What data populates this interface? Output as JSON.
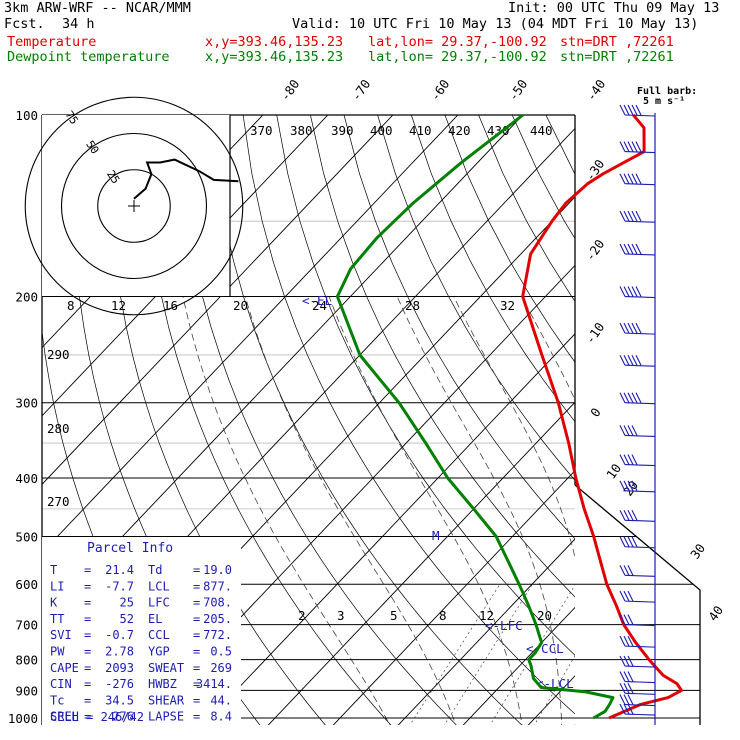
{
  "header": {
    "model": "3km ARW-WRF -- NCAR/MMM",
    "init": "Init: 00 UTC Thu 09 May 13",
    "fcst_label": "Fcst.",
    "fcst_value": "34 h",
    "valid": "Valid: 10 UTC Fri 10 May 13 (04 MDT Fri 10 May 13)",
    "temp_label": "Temperature",
    "dew_label": "Dewpoint temperature",
    "xy": "x,y=393.46,135.23",
    "latlon": "lat,lon= 29.37,-100.92",
    "stn": "stn=DRT ,72261"
  },
  "barb_legend": {
    "line1": "Full barb:",
    "line2": "5 m s⁻¹"
  },
  "hodograph": {
    "units": "kts",
    "ring_labels": [
      "25",
      "50",
      "75"
    ]
  },
  "parcel_info": {
    "title": "Parcel Info",
    "rows": [
      [
        "T",
        "21.4",
        "Td",
        "19.0"
      ],
      [
        "LI",
        "-7.7",
        "LCL",
        "877."
      ],
      [
        "K",
        "25",
        "LFC",
        "708."
      ],
      [
        "TT",
        "52",
        "EL",
        "205."
      ],
      [
        "SVI",
        "-0.7",
        "CCL",
        "772."
      ],
      [
        "PW",
        "2.78",
        "YGP",
        "0.5"
      ],
      [
        "CAPE",
        "2093",
        "SWEAT",
        "269"
      ],
      [
        "CIN",
        "-276",
        "HWBZ",
        "3414."
      ],
      [
        "Tc",
        "34.5",
        "SHEAR",
        "44."
      ],
      [
        "SREH",
        "276",
        "LAPSE",
        "8.4"
      ]
    ],
    "cell": "CELL = 246/42"
  },
  "chart_data": {
    "type": "line",
    "title": "",
    "y_axis": "pressure",
    "y_scale": "log",
    "ylim": [
      1000,
      100
    ],
    "pressure_ticks": [
      "100",
      "200",
      "300",
      "400",
      "500",
      "600",
      "700",
      "800",
      "900",
      "1000"
    ],
    "isotherm_labels_top": [
      "-80",
      "-70",
      "-60",
      "-50",
      "-40"
    ],
    "isotherm_labels_right": [
      "-30",
      "-20",
      "-10",
      "0",
      "10",
      "20",
      "30",
      "40"
    ],
    "theta_labels": [
      "370",
      "380",
      "390",
      "400",
      "410",
      "420",
      "430",
      "440"
    ],
    "mixing_ratio_labels": [
      "8",
      "12",
      "16",
      "20",
      "24",
      "28",
      "32"
    ],
    "mixing_ratio_labels_low": [
      "2",
      "3",
      "5",
      "8",
      "12",
      "20"
    ],
    "left_labels": [
      "290",
      "280",
      "270"
    ],
    "level_markers": [
      {
        "label": "<-LFC",
        "p": 708
      },
      {
        "label": "<-CCL",
        "p": 772
      },
      {
        "label": "<-LCL",
        "p": 877
      },
      {
        "label": "M",
        "p": 500
      },
      {
        "label": "<-EL",
        "p": 205
      }
    ],
    "series": [
      {
        "name": "Temperature",
        "color": "#e00000",
        "points": [
          [
            1000,
            21.4
          ],
          [
            950,
            24.2
          ],
          [
            925,
            27.5
          ],
          [
            900,
            28.5
          ],
          [
            877,
            26.8
          ],
          [
            850,
            23.5
          ],
          [
            800,
            19.0
          ],
          [
            750,
            14.5
          ],
          [
            700,
            10.0
          ],
          [
            650,
            6.0
          ],
          [
            600,
            1.5
          ],
          [
            550,
            -2.8
          ],
          [
            500,
            -7.5
          ],
          [
            450,
            -13.0
          ],
          [
            400,
            -18.8
          ],
          [
            350,
            -25.0
          ],
          [
            300,
            -32.5
          ],
          [
            250,
            -42.0
          ],
          [
            200,
            -53.5
          ],
          [
            170,
            -58.5
          ],
          [
            150,
            -60.0
          ],
          [
            140,
            -60.5
          ],
          [
            130,
            -60.0
          ],
          [
            125,
            -59.0
          ],
          [
            115,
            -56.0
          ],
          [
            105,
            -59.5
          ],
          [
            100,
            -63.0
          ]
        ]
      },
      {
        "name": "Dewpoint temperature",
        "color": "#008000",
        "points": [
          [
            1000,
            19.0
          ],
          [
            975,
            19.8
          ],
          [
            950,
            19.5
          ],
          [
            925,
            19.0
          ],
          [
            905,
            14.0
          ],
          [
            890,
            6.5
          ],
          [
            860,
            4.0
          ],
          [
            820,
            1.8
          ],
          [
            800,
            0.5
          ],
          [
            780,
            0.5
          ],
          [
            750,
            0.0
          ],
          [
            700,
            -3.5
          ],
          [
            650,
            -7.5
          ],
          [
            600,
            -12.0
          ],
          [
            550,
            -17.0
          ],
          [
            500,
            -22.5
          ],
          [
            450,
            -30.0
          ],
          [
            400,
            -38.5
          ],
          [
            350,
            -47.0
          ],
          [
            300,
            -57.0
          ],
          [
            250,
            -70.0
          ],
          [
            200,
            -82.0
          ],
          [
            180,
            -84.0
          ],
          [
            160,
            -84.5
          ],
          [
            140,
            -84.0
          ],
          [
            120,
            -82.5
          ],
          [
            100,
            -80.0
          ]
        ]
      }
    ],
    "hodograph_trace_kts": [
      [
        0,
        5
      ],
      [
        8,
        12
      ],
      [
        12,
        22
      ],
      [
        9,
        30
      ],
      [
        18,
        30
      ],
      [
        28,
        32
      ],
      [
        45,
        24
      ],
      [
        55,
        18
      ],
      [
        72,
        17
      ]
    ],
    "wind_barbs": [
      {
        "p": 100,
        "spd_ms": 25
      },
      {
        "p": 115,
        "spd_ms": 25
      },
      {
        "p": 130,
        "spd_ms": 25
      },
      {
        "p": 150,
        "spd_ms": 25
      },
      {
        "p": 170,
        "spd_ms": 25
      },
      {
        "p": 200,
        "spd_ms": 25
      },
      {
        "p": 230,
        "spd_ms": 25
      },
      {
        "p": 260,
        "spd_ms": 25
      },
      {
        "p": 300,
        "spd_ms": 25
      },
      {
        "p": 340,
        "spd_ms": 20
      },
      {
        "p": 380,
        "spd_ms": 20
      },
      {
        "p": 420,
        "spd_ms": 20
      },
      {
        "p": 470,
        "spd_ms": 20
      },
      {
        "p": 520,
        "spd_ms": 20
      },
      {
        "p": 580,
        "spd_ms": 15
      },
      {
        "p": 640,
        "spd_ms": 15
      },
      {
        "p": 700,
        "spd_ms": 15
      },
      {
        "p": 760,
        "spd_ms": 15
      },
      {
        "p": 820,
        "spd_ms": 15
      },
      {
        "p": 870,
        "spd_ms": 15
      },
      {
        "p": 910,
        "spd_ms": 15
      },
      {
        "p": 950,
        "spd_ms": 15
      },
      {
        "p": 985,
        "spd_ms": 15
      }
    ],
    "grid": true
  }
}
